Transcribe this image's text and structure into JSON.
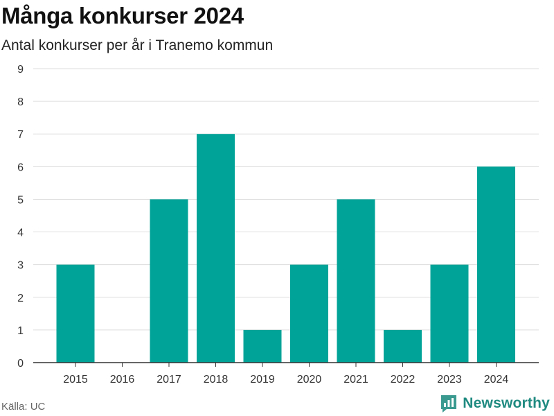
{
  "header": {
    "title": "Många konkurser 2024",
    "subtitle": "Antal konkurser per år i Tranemo kommun"
  },
  "footer": {
    "source": "Källa: UC",
    "brand": "Newsworthy"
  },
  "colors": {
    "bar": "#00A398",
    "grid": "#dddddd",
    "axis": "#333333"
  },
  "chart_data": {
    "type": "bar",
    "title": "Många konkurser 2024",
    "subtitle": "Antal konkurser per år i Tranemo kommun",
    "xlabel": "",
    "ylabel": "",
    "categories": [
      "2015",
      "2016",
      "2017",
      "2018",
      "2019",
      "2020",
      "2021",
      "2022",
      "2023",
      "2024"
    ],
    "values": [
      3,
      0,
      5,
      7,
      1,
      3,
      5,
      1,
      3,
      6
    ],
    "ylim": [
      0,
      9
    ],
    "yticks": [
      0,
      1,
      2,
      3,
      4,
      5,
      6,
      7,
      8,
      9
    ],
    "grid": true,
    "legend": "none"
  }
}
